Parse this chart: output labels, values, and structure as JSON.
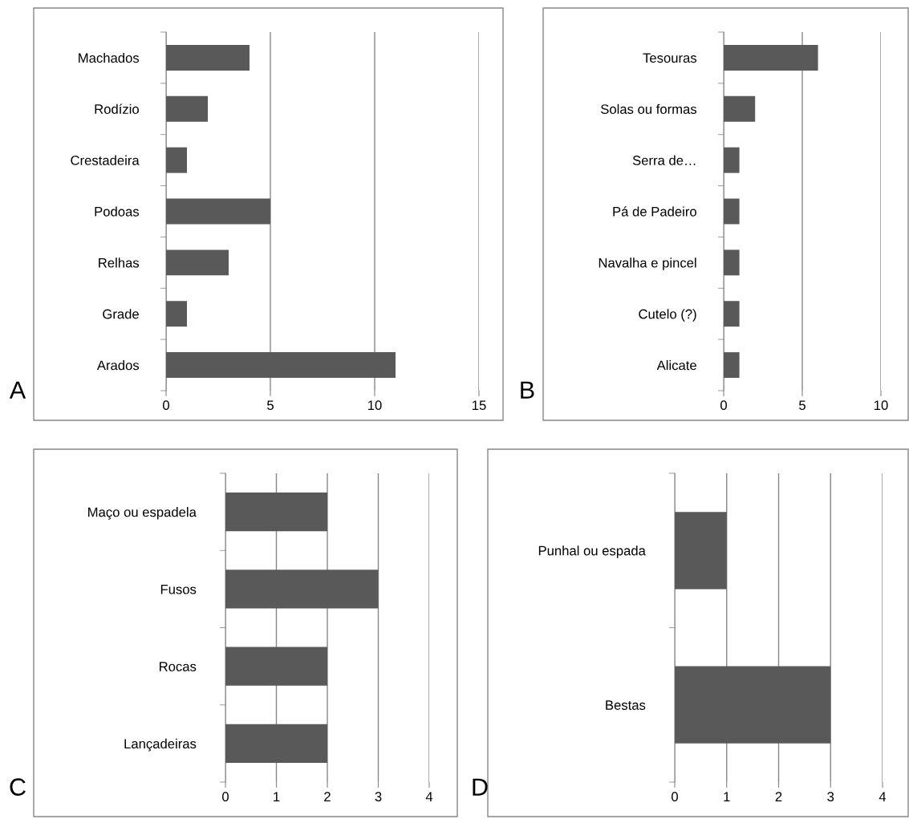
{
  "chart_data": [
    {
      "type": "bar",
      "orientation": "horizontal",
      "categories": [
        "Machados",
        "Rodízio",
        "Crestadeira",
        "Podoas",
        "Relhas",
        "Grade",
        "Arados"
      ],
      "values": [
        4,
        2,
        1,
        5,
        3,
        1,
        11
      ],
      "color": "#595959",
      "xlim": [
        0,
        15
      ],
      "xticks": [
        0,
        5,
        10,
        15
      ],
      "grid": "x",
      "legend": false,
      "annotations": [
        "A"
      ]
    },
    {
      "type": "bar",
      "orientation": "horizontal",
      "categories": [
        "Tesouras",
        "Solas ou formas",
        "Serra de…",
        "Pá de Padeiro",
        "Navalha e pincel",
        "Cutelo (?)",
        "Alicate"
      ],
      "values": [
        6,
        2,
        1,
        1,
        1,
        1,
        1
      ],
      "color": "#595959",
      "xlim": [
        0,
        10
      ],
      "xticks": [
        0,
        5,
        10
      ],
      "grid": "x",
      "legend": false,
      "annotations": [
        "B"
      ]
    },
    {
      "type": "bar",
      "orientation": "horizontal",
      "categories": [
        "Maço ou espadela",
        "Fusos",
        "Rocas",
        "Lançadeiras"
      ],
      "values": [
        2,
        3,
        2,
        2
      ],
      "color": "#595959",
      "xlim": [
        0,
        4
      ],
      "xticks": [
        0,
        1,
        2,
        3,
        4
      ],
      "grid": "x",
      "legend": false,
      "annotations": [
        "C"
      ]
    },
    {
      "type": "bar",
      "orientation": "horizontal",
      "categories": [
        "Punhal ou espada",
        "Bestas"
      ],
      "values": [
        1,
        3
      ],
      "color": "#595959",
      "xlim": [
        0,
        4
      ],
      "xticks": [
        0,
        1,
        2,
        3,
        4
      ],
      "grid": "x",
      "legend": false,
      "annotations": [
        "D"
      ]
    }
  ]
}
